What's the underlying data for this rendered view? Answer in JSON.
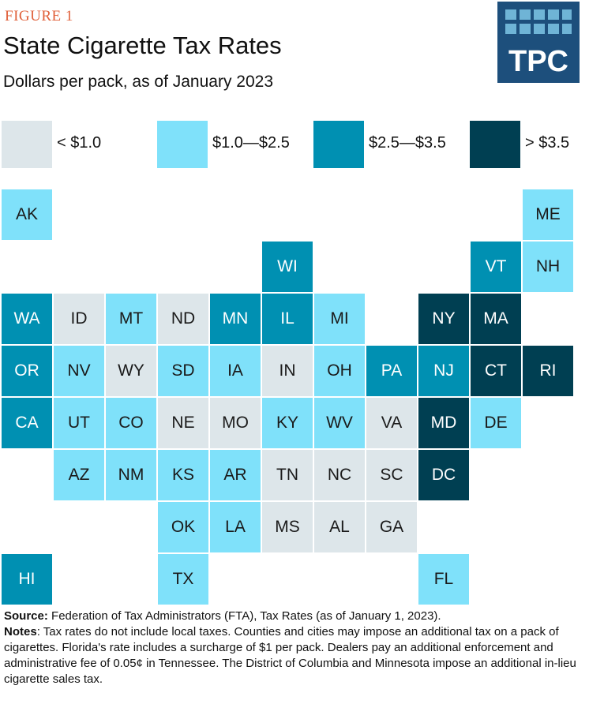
{
  "header": {
    "figure_label": "FIGURE 1",
    "title": "State Cigarette Tax Rates",
    "subtitle": "Dollars per pack, as of January 2023",
    "logo": "TPC"
  },
  "legend": [
    {
      "label": "< $1.0",
      "color": "#dde6ea",
      "text_color": "#1a1a1a"
    },
    {
      "label": "$1.0—$2.5",
      "color": "#7fe1fa",
      "text_color": "#1a1a1a"
    },
    {
      "label": "$2.5—$3.5",
      "color": "#0090b2",
      "text_color": "#ffffff"
    },
    {
      "label": "> $3.5",
      "color": "#003f52",
      "text_color": "#ffffff"
    }
  ],
  "map": {
    "rows": [
      [
        {
          "label": "AK",
          "bin": 1
        },
        null,
        null,
        null,
        null,
        null,
        null,
        null,
        null,
        null,
        {
          "label": "ME",
          "bin": 1
        }
      ],
      [
        null,
        null,
        null,
        null,
        null,
        {
          "label": "WI",
          "bin": 2
        },
        null,
        null,
        null,
        {
          "label": "VT",
          "bin": 2
        },
        {
          "label": "NH",
          "bin": 1
        }
      ],
      [
        {
          "label": "WA",
          "bin": 2
        },
        {
          "label": "ID",
          "bin": 0
        },
        {
          "label": "MT",
          "bin": 1
        },
        {
          "label": "ND",
          "bin": 0
        },
        {
          "label": "MN",
          "bin": 2
        },
        {
          "label": "IL",
          "bin": 2
        },
        {
          "label": "MI",
          "bin": 1
        },
        null,
        {
          "label": "NY",
          "bin": 3
        },
        {
          "label": "MA",
          "bin": 3
        },
        null
      ],
      [
        {
          "label": "OR",
          "bin": 2
        },
        {
          "label": "NV",
          "bin": 1
        },
        {
          "label": "WY",
          "bin": 0
        },
        {
          "label": "SD",
          "bin": 1
        },
        {
          "label": "IA",
          "bin": 1
        },
        {
          "label": "IN",
          "bin": 0
        },
        {
          "label": "OH",
          "bin": 1
        },
        {
          "label": "PA",
          "bin": 2
        },
        {
          "label": "NJ",
          "bin": 2
        },
        {
          "label": "CT",
          "bin": 3
        },
        {
          "label": "RI",
          "bin": 3
        }
      ],
      [
        {
          "label": "CA",
          "bin": 2
        },
        {
          "label": "UT",
          "bin": 1
        },
        {
          "label": "CO",
          "bin": 1
        },
        {
          "label": "NE",
          "bin": 0
        },
        {
          "label": "MO",
          "bin": 0
        },
        {
          "label": "KY",
          "bin": 1
        },
        {
          "label": "WV",
          "bin": 1
        },
        {
          "label": "VA",
          "bin": 0
        },
        {
          "label": "MD",
          "bin": 3
        },
        {
          "label": "DE",
          "bin": 1
        },
        null
      ],
      [
        null,
        {
          "label": "AZ",
          "bin": 1
        },
        {
          "label": "NM",
          "bin": 1
        },
        {
          "label": "KS",
          "bin": 1
        },
        {
          "label": "AR",
          "bin": 1
        },
        {
          "label": "TN",
          "bin": 0
        },
        {
          "label": "NC",
          "bin": 0
        },
        {
          "label": "SC",
          "bin": 0
        },
        {
          "label": "DC",
          "bin": 3
        },
        null,
        null
      ],
      [
        null,
        null,
        null,
        {
          "label": "OK",
          "bin": 1
        },
        {
          "label": "LA",
          "bin": 1
        },
        {
          "label": "MS",
          "bin": 0
        },
        {
          "label": "AL",
          "bin": 0
        },
        {
          "label": "GA",
          "bin": 0
        },
        null,
        null,
        null
      ],
      [
        {
          "label": "HI",
          "bin": 2
        },
        null,
        null,
        {
          "label": "TX",
          "bin": 1
        },
        null,
        null,
        null,
        null,
        {
          "label": "FL",
          "bin": 1
        },
        null,
        null
      ]
    ]
  },
  "footer": {
    "source_label": "Source:",
    "source": "Federation of Tax Administrators (FTA), Tax Rates (as of January 1, 2023).",
    "notes_label": "Notes",
    "notes": ": Tax rates do not include local taxes. Counties and cities may impose an additional tax on a pack of cigarettes. Florida's rate includes a surcharge of $1 per pack. Dealers pay an additional enforcement and administrative fee of 0.05¢ in Tennessee. The District of Columbia and Minnesota impose an additional in-lieu cigarette sales tax."
  }
}
